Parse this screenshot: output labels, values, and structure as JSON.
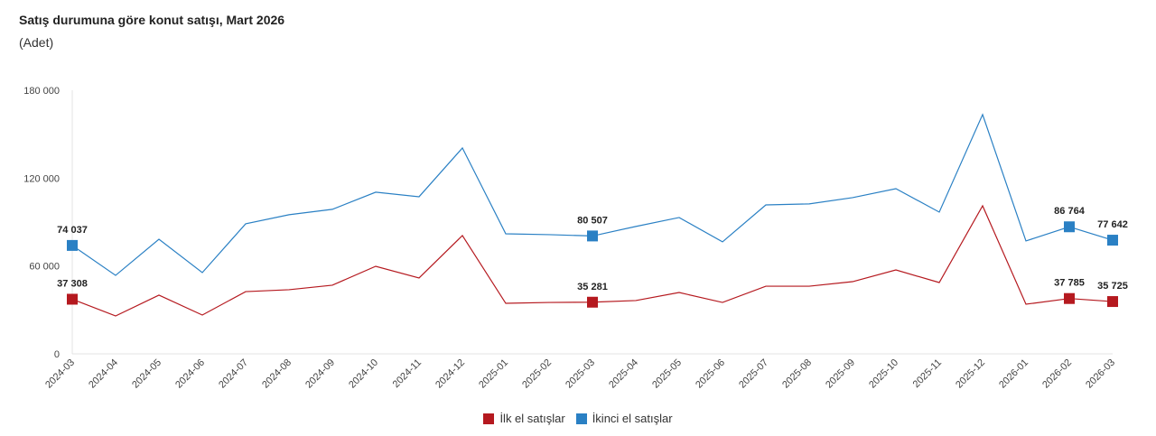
{
  "chart_data": {
    "type": "line",
    "title": "Satış durumuna göre konut satışı, Mart 2026",
    "subtitle": "(Adet)",
    "xlabel": "",
    "ylabel": "",
    "ylim": [
      0,
      180000
    ],
    "yticks": [
      0,
      60000,
      120000,
      180000
    ],
    "ytick_labels": [
      "0",
      "60 000",
      "120 000",
      "180 000"
    ],
    "grid": false,
    "legend_position": "bottom-center",
    "categories": [
      "2024-03",
      "2024-04",
      "2024-05",
      "2024-06",
      "2024-07",
      "2024-08",
      "2024-09",
      "2024-10",
      "2024-11",
      "2024-12",
      "2025-01",
      "2025-02",
      "2025-03",
      "2025-04",
      "2025-05",
      "2025-06",
      "2025-07",
      "2025-08",
      "2025-09",
      "2025-10",
      "2025-11",
      "2025-12",
      "2026-01",
      "2026-02",
      "2026-03"
    ],
    "series": [
      {
        "name": "İlk el satışlar",
        "color": "#b5191f",
        "values": [
          37308,
          25900,
          40100,
          26500,
          42500,
          43800,
          46900,
          59800,
          51800,
          80800,
          34500,
          35100,
          35281,
          36400,
          41900,
          35100,
          46200,
          46200,
          49300,
          57300,
          48700,
          101100,
          33900,
          37785,
          35725
        ],
        "labeled": {
          "0": "37 308",
          "12": "35 281",
          "23": "37 785",
          "24": "35 725"
        }
      },
      {
        "name": "İkinci el satışlar",
        "color": "#2a80c4",
        "values": [
          74037,
          53600,
          78300,
          55500,
          88800,
          95000,
          98700,
          110400,
          107300,
          140600,
          82000,
          81400,
          80507,
          87000,
          93100,
          76500,
          101700,
          102400,
          106700,
          112800,
          96800,
          163400,
          77100,
          86764,
          77642
        ],
        "labeled": {
          "0": "74 037",
          "12": "80 507",
          "23": "86 764",
          "24": "77 642"
        }
      }
    ]
  }
}
